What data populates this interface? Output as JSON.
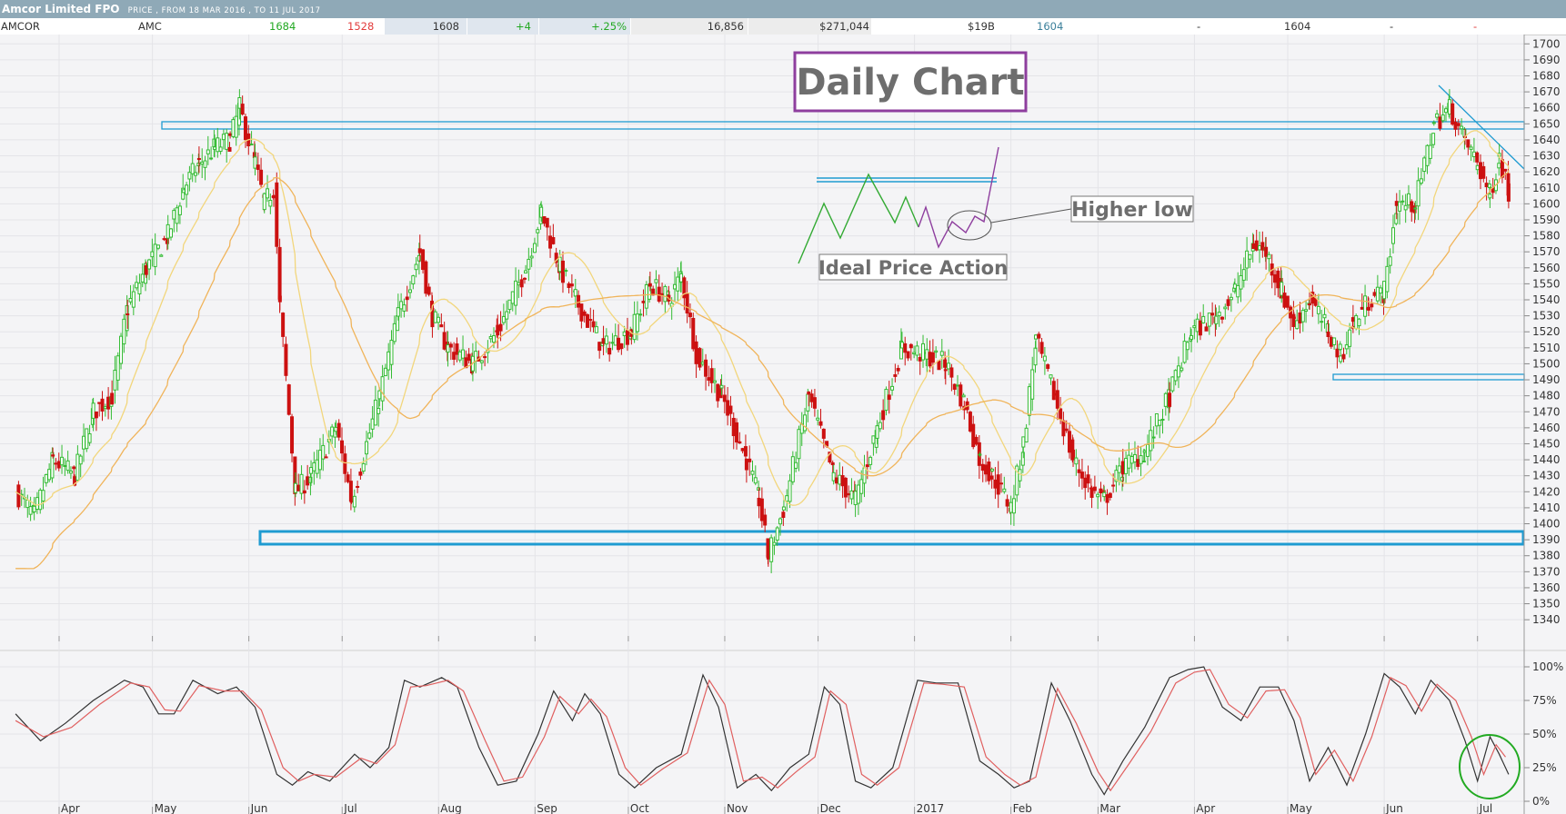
{
  "header": {
    "title": "Amcor Limited FPO",
    "subtitle": "PRICE , FROM 18 MAR 2016 , TO 11 JUL 2017"
  },
  "quote": {
    "name": "AMCOR",
    "code": "AMC",
    "high": "1684",
    "low": "1528",
    "close": "1608",
    "change": "+4",
    "change_pct": "+.25%",
    "volume": "16,856",
    "value": "$271,044",
    "market_cap": "$19B",
    "bid": "1604",
    "f1": "-",
    "last": "1604",
    "f2": "-",
    "f3": "-",
    "colors": {
      "up": "#22a822",
      "down": "#e23b3b"
    }
  },
  "chart_data": [
    {
      "type": "candlestick",
      "title": "",
      "y_ticks": [
        1340,
        1350,
        1360,
        1370,
        1380,
        1390,
        1400,
        1410,
        1420,
        1430,
        1440,
        1450,
        1460,
        1470,
        1480,
        1490,
        1500,
        1510,
        1520,
        1530,
        1540,
        1550,
        1560,
        1570,
        1580,
        1590,
        1600,
        1610,
        1620,
        1630,
        1640,
        1650,
        1660,
        1670,
        1680,
        1690,
        1700
      ],
      "ylim": [
        1331,
        1703
      ],
      "x_labels": [
        "Apr",
        "May",
        "Jun",
        "Jul",
        "Aug",
        "Sep",
        "Oct",
        "Nov",
        "Dec",
        "2017",
        "Feb",
        "Mar",
        "Apr",
        "May",
        "Jun",
        "Jul"
      ],
      "grid": true,
      "colors": {
        "up": "#33bb33",
        "down": "#cc1111",
        "ma_fast": "#f2d67c",
        "ma_slow": "#f0b45a",
        "support": "#1f9bd1"
      },
      "price_path": [
        [
          "2016-03-18",
          1420
        ],
        [
          "2016-03-24",
          1405
        ],
        [
          "2016-03-30",
          1440
        ],
        [
          "2016-04-06",
          1430
        ],
        [
          "2016-04-12",
          1470
        ],
        [
          "2016-04-18",
          1480
        ],
        [
          "2016-04-23",
          1535
        ],
        [
          "2016-04-29",
          1560
        ],
        [
          "2016-05-06",
          1580
        ],
        [
          "2016-05-11",
          1610
        ],
        [
          "2016-05-16",
          1625
        ],
        [
          "2016-05-21",
          1635
        ],
        [
          "2016-05-26",
          1640
        ],
        [
          "2016-05-29",
          1660
        ],
        [
          "2016-06-03",
          1625
        ],
        [
          "2016-06-06",
          1600
        ],
        [
          "2016-06-09",
          1610
        ],
        [
          "2016-06-11",
          1535
        ],
        [
          "2016-06-16",
          1420
        ],
        [
          "2016-06-21",
          1430
        ],
        [
          "2016-06-29",
          1460
        ],
        [
          "2016-07-04",
          1415
        ],
        [
          "2016-07-13",
          1480
        ],
        [
          "2016-07-19",
          1530
        ],
        [
          "2016-07-26",
          1570
        ],
        [
          "2016-07-30",
          1530
        ],
        [
          "2016-08-04",
          1510
        ],
        [
          "2016-08-12",
          1500
        ],
        [
          "2016-08-20",
          1520
        ],
        [
          "2016-08-29",
          1560
        ],
        [
          "2016-09-03",
          1595
        ],
        [
          "2016-09-09",
          1560
        ],
        [
          "2016-09-14",
          1540
        ],
        [
          "2016-09-23",
          1510
        ],
        [
          "2016-10-02",
          1520
        ],
        [
          "2016-10-08",
          1550
        ],
        [
          "2016-10-14",
          1540
        ],
        [
          "2016-10-18",
          1555
        ],
        [
          "2016-10-23",
          1505
        ],
        [
          "2016-10-31",
          1480
        ],
        [
          "2016-11-08",
          1440
        ],
        [
          "2016-11-12",
          1415
        ],
        [
          "2016-11-15",
          1380
        ],
        [
          "2016-11-20",
          1410
        ],
        [
          "2016-11-28",
          1480
        ],
        [
          "2016-12-06",
          1430
        ],
        [
          "2016-12-13",
          1415
        ],
        [
          "2016-12-20",
          1460
        ],
        [
          "2016-12-28",
          1510
        ],
        [
          "2017-01-05",
          1505
        ],
        [
          "2017-01-11",
          1500
        ],
        [
          "2017-01-17",
          1475
        ],
        [
          "2017-01-22",
          1440
        ],
        [
          "2017-01-26",
          1430
        ],
        [
          "2017-02-01",
          1410
        ],
        [
          "2017-02-05",
          1450
        ],
        [
          "2017-02-09",
          1515
        ],
        [
          "2017-02-15",
          1480
        ],
        [
          "2017-02-21",
          1440
        ],
        [
          "2017-02-27",
          1420
        ],
        [
          "2017-03-03",
          1415
        ],
        [
          "2017-03-09",
          1435
        ],
        [
          "2017-03-16",
          1445
        ],
        [
          "2017-03-24",
          1480
        ],
        [
          "2017-03-31",
          1520
        ],
        [
          "2017-04-08",
          1530
        ],
        [
          "2017-04-14",
          1545
        ],
        [
          "2017-04-20",
          1575
        ],
        [
          "2017-04-24",
          1570
        ],
        [
          "2017-04-29",
          1545
        ],
        [
          "2017-05-03",
          1525
        ],
        [
          "2017-05-08",
          1540
        ],
        [
          "2017-05-14",
          1520
        ],
        [
          "2017-05-18",
          1505
        ],
        [
          "2017-05-22",
          1525
        ],
        [
          "2017-05-27",
          1540
        ],
        [
          "2017-06-01",
          1545
        ],
        [
          "2017-06-05",
          1600
        ],
        [
          "2017-06-11",
          1600
        ],
        [
          "2017-06-17",
          1650
        ],
        [
          "2017-06-22",
          1660
        ],
        [
          "2017-06-27",
          1640
        ],
        [
          "2017-07-01",
          1625
        ],
        [
          "2017-07-05",
          1605
        ],
        [
          "2017-07-08",
          1630
        ],
        [
          "2017-07-11",
          1608
        ]
      ]
    },
    {
      "type": "line",
      "title": "",
      "y_ticks": [
        "0%",
        "25%",
        "50%",
        "75%",
        "100%"
      ],
      "ylim": [
        0,
        100
      ],
      "series": [
        {
          "color": "#333333",
          "points": [
            [
              "2016-03-18",
              65
            ],
            [
              "2016-03-26",
              45
            ],
            [
              "2016-04-03",
              58
            ],
            [
              "2016-04-12",
              75
            ],
            [
              "2016-04-22",
              90
            ],
            [
              "2016-04-28",
              85
            ],
            [
              "2016-05-03",
              65
            ],
            [
              "2016-05-08",
              65
            ],
            [
              "2016-05-14",
              90
            ],
            [
              "2016-05-22",
              80
            ],
            [
              "2016-05-28",
              85
            ],
            [
              "2016-06-03",
              70
            ],
            [
              "2016-06-10",
              20
            ],
            [
              "2016-06-15",
              12
            ],
            [
              "2016-06-20",
              22
            ],
            [
              "2016-06-27",
              15
            ],
            [
              "2016-07-05",
              35
            ],
            [
              "2016-07-10",
              25
            ],
            [
              "2016-07-16",
              40
            ],
            [
              "2016-07-21",
              90
            ],
            [
              "2016-07-26",
              85
            ],
            [
              "2016-08-02",
              92
            ],
            [
              "2016-08-07",
              85
            ],
            [
              "2016-08-14",
              40
            ],
            [
              "2016-08-20",
              12
            ],
            [
              "2016-08-26",
              15
            ],
            [
              "2016-09-02",
              50
            ],
            [
              "2016-09-07",
              82
            ],
            [
              "2016-09-13",
              60
            ],
            [
              "2016-09-17",
              80
            ],
            [
              "2016-09-22",
              65
            ],
            [
              "2016-09-28",
              20
            ],
            [
              "2016-10-03",
              10
            ],
            [
              "2016-10-10",
              25
            ],
            [
              "2016-10-18",
              35
            ],
            [
              "2016-10-25",
              94
            ],
            [
              "2016-10-30",
              70
            ],
            [
              "2016-11-05",
              10
            ],
            [
              "2016-11-11",
              20
            ],
            [
              "2016-11-16",
              8
            ],
            [
              "2016-11-22",
              25
            ],
            [
              "2016-11-28",
              35
            ],
            [
              "2016-12-03",
              85
            ],
            [
              "2016-12-08",
              72
            ],
            [
              "2016-12-13",
              15
            ],
            [
              "2016-12-18",
              10
            ],
            [
              "2016-12-25",
              25
            ],
            [
              "2017-01-02",
              90
            ],
            [
              "2017-01-08",
              88
            ],
            [
              "2017-01-15",
              88
            ],
            [
              "2017-01-22",
              30
            ],
            [
              "2017-01-28",
              20
            ],
            [
              "2017-02-02",
              10
            ],
            [
              "2017-02-07",
              15
            ],
            [
              "2017-02-14",
              88
            ],
            [
              "2017-02-20",
              60
            ],
            [
              "2017-02-27",
              20
            ],
            [
              "2017-03-03",
              5
            ],
            [
              "2017-03-09",
              30
            ],
            [
              "2017-03-16",
              55
            ],
            [
              "2017-03-24",
              92
            ],
            [
              "2017-03-30",
              98
            ],
            [
              "2017-04-04",
              100
            ],
            [
              "2017-04-10",
              70
            ],
            [
              "2017-04-16",
              60
            ],
            [
              "2017-04-22",
              85
            ],
            [
              "2017-04-28",
              85
            ],
            [
              "2017-05-03",
              60
            ],
            [
              "2017-05-08",
              15
            ],
            [
              "2017-05-14",
              40
            ],
            [
              "2017-05-20",
              12
            ],
            [
              "2017-05-26",
              50
            ],
            [
              "2017-06-01",
              95
            ],
            [
              "2017-06-06",
              85
            ],
            [
              "2017-06-11",
              65
            ],
            [
              "2017-06-16",
              90
            ],
            [
              "2017-06-22",
              75
            ],
            [
              "2017-06-27",
              45
            ],
            [
              "2017-07-01",
              15
            ],
            [
              "2017-07-05",
              48
            ],
            [
              "2017-07-08",
              35
            ],
            [
              "2017-07-11",
              20
            ]
          ]
        },
        {
          "color": "#e06060",
          "points": [
            [
              "2016-03-18",
              60
            ],
            [
              "2016-03-27",
              48
            ],
            [
              "2016-04-05",
              55
            ],
            [
              "2016-04-14",
              72
            ],
            [
              "2016-04-24",
              88
            ],
            [
              "2016-04-30",
              85
            ],
            [
              "2016-05-05",
              68
            ],
            [
              "2016-05-10",
              67
            ],
            [
              "2016-05-16",
              86
            ],
            [
              "2016-05-24",
              82
            ],
            [
              "2016-05-30",
              82
            ],
            [
              "2016-06-05",
              68
            ],
            [
              "2016-06-12",
              25
            ],
            [
              "2016-06-17",
              15
            ],
            [
              "2016-06-22",
              20
            ],
            [
              "2016-06-29",
              18
            ],
            [
              "2016-07-07",
              32
            ],
            [
              "2016-07-12",
              28
            ],
            [
              "2016-07-18",
              42
            ],
            [
              "2016-07-23",
              85
            ],
            [
              "2016-07-28",
              86
            ],
            [
              "2016-08-04",
              90
            ],
            [
              "2016-08-09",
              82
            ],
            [
              "2016-08-16",
              45
            ],
            [
              "2016-08-22",
              15
            ],
            [
              "2016-08-28",
              18
            ],
            [
              "2016-09-04",
              48
            ],
            [
              "2016-09-09",
              78
            ],
            [
              "2016-09-15",
              65
            ],
            [
              "2016-09-19",
              76
            ],
            [
              "2016-09-24",
              63
            ],
            [
              "2016-09-30",
              25
            ],
            [
              "2016-10-05",
              12
            ],
            [
              "2016-10-12",
              24
            ],
            [
              "2016-10-20",
              36
            ],
            [
              "2016-10-27",
              90
            ],
            [
              "2016-11-01",
              72
            ],
            [
              "2016-11-07",
              15
            ],
            [
              "2016-11-13",
              18
            ],
            [
              "2016-11-18",
              10
            ],
            [
              "2016-11-24",
              22
            ],
            [
              "2016-11-30",
              33
            ],
            [
              "2016-12-05",
              82
            ],
            [
              "2016-12-10",
              72
            ],
            [
              "2016-12-15",
              20
            ],
            [
              "2016-12-20",
              12
            ],
            [
              "2016-12-27",
              25
            ],
            [
              "2017-01-04",
              88
            ],
            [
              "2017-01-10",
              87
            ],
            [
              "2017-01-17",
              85
            ],
            [
              "2017-01-24",
              33
            ],
            [
              "2017-01-30",
              20
            ],
            [
              "2017-02-04",
              12
            ],
            [
              "2017-02-09",
              18
            ],
            [
              "2017-02-16",
              84
            ],
            [
              "2017-02-22",
              58
            ],
            [
              "2017-03-01",
              22
            ],
            [
              "2017-03-05",
              8
            ],
            [
              "2017-03-11",
              28
            ],
            [
              "2017-03-18",
              52
            ],
            [
              "2017-03-26",
              88
            ],
            [
              "2017-04-01",
              96
            ],
            [
              "2017-04-06",
              98
            ],
            [
              "2017-04-12",
              72
            ],
            [
              "2017-04-18",
              62
            ],
            [
              "2017-04-24",
              82
            ],
            [
              "2017-04-30",
              83
            ],
            [
              "2017-05-05",
              62
            ],
            [
              "2017-05-10",
              20
            ],
            [
              "2017-05-16",
              38
            ],
            [
              "2017-05-22",
              15
            ],
            [
              "2017-05-28",
              48
            ],
            [
              "2017-06-03",
              92
            ],
            [
              "2017-06-08",
              86
            ],
            [
              "2017-06-13",
              67
            ],
            [
              "2017-06-18",
              87
            ],
            [
              "2017-06-24",
              75
            ],
            [
              "2017-06-29",
              48
            ],
            [
              "2017-07-03",
              20
            ],
            [
              "2017-07-07",
              42
            ],
            [
              "2017-07-10",
              33
            ]
          ]
        }
      ]
    }
  ],
  "annotations": {
    "title_box": "Daily Chart",
    "higher_low_label": "Higher low",
    "ideal_label": "Ideal Price Action"
  }
}
